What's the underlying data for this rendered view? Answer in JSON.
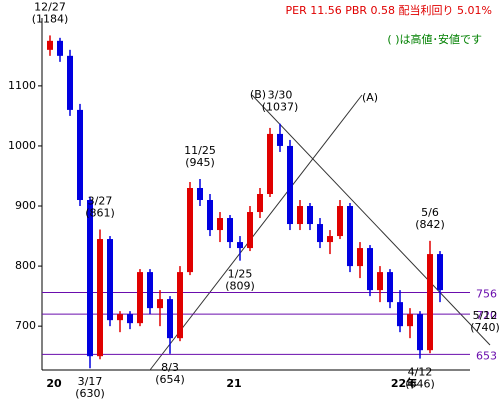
{
  "chart_data": {
    "type": "candlestick",
    "title": "PER 11.56 PBR 0.58 配当利回り 5.01%",
    "note": "( )は高値･安値です",
    "categories": [
      "20",
      null,
      null,
      null,
      null,
      null,
      null,
      null,
      null,
      null,
      null,
      null,
      null,
      null,
      null,
      null,
      null,
      null,
      "21",
      null,
      null,
      null,
      null,
      null,
      null,
      null,
      null,
      null,
      null,
      null,
      null,
      null,
      null,
      null,
      null,
      "22年",
      null,
      null,
      null,
      null
    ],
    "open": [
      1160,
      1175,
      1150,
      1060,
      910,
      650,
      845,
      710,
      720,
      705,
      790,
      730,
      745,
      680,
      790,
      930,
      910,
      860,
      880,
      840,
      830,
      890,
      920,
      1020,
      1000,
      870,
      900,
      870,
      840,
      850,
      900,
      800,
      830,
      760,
      790,
      740,
      700,
      720,
      660,
      820
    ],
    "high": [
      1184,
      1180,
      1160,
      1070,
      915,
      861,
      850,
      725,
      725,
      795,
      795,
      760,
      750,
      800,
      940,
      945,
      920,
      890,
      885,
      850,
      900,
      930,
      1030,
      1037,
      1010,
      910,
      905,
      880,
      860,
      910,
      905,
      840,
      835,
      800,
      795,
      760,
      730,
      725,
      842,
      825
    ],
    "low": [
      1150,
      1140,
      1050,
      900,
      630,
      645,
      700,
      690,
      695,
      700,
      720,
      700,
      654,
      675,
      785,
      900,
      850,
      840,
      830,
      809,
      825,
      880,
      915,
      990,
      860,
      860,
      860,
      830,
      820,
      845,
      790,
      780,
      750,
      740,
      730,
      690,
      680,
      646,
      655,
      740
    ],
    "close": [
      1175,
      1150,
      1060,
      910,
      650,
      845,
      710,
      720,
      705,
      790,
      730,
      745,
      680,
      790,
      930,
      910,
      860,
      880,
      840,
      830,
      890,
      920,
      1020,
      1000,
      870,
      900,
      870,
      840,
      850,
      900,
      800,
      830,
      760,
      790,
      740,
      700,
      720,
      660,
      820,
      760
    ],
    "up_color": "#e00000",
    "down_color": "#0000e0",
    "ylim": [
      627,
      1218
    ],
    "yticks": [
      700,
      800,
      900,
      1000,
      1100
    ],
    "hlines": [
      756,
      720,
      653
    ],
    "hline_color": "#6a0dad",
    "annotations": [
      {
        "label": "12/27",
        "value": 1184,
        "value_label": "(1184)"
      },
      {
        "label": "3/17",
        "value": 630,
        "value_label": "(630)"
      },
      {
        "label": "3/27",
        "value": 861,
        "value_label": "(861)"
      },
      {
        "label": "8/3",
        "value": 654,
        "value_label": "(654)"
      },
      {
        "label": "11/25",
        "value": 945,
        "value_label": "(945)"
      },
      {
        "label": "1/25",
        "value": 809,
        "value_label": "(809)"
      },
      {
        "label": "3/30",
        "value": 1037,
        "value_label": "(1037)"
      },
      {
        "label": "4/12",
        "value": 646,
        "value_label": "(646)"
      },
      {
        "label": "5/6",
        "value": 842,
        "value_label": "(842)"
      },
      {
        "label": "5/12",
        "value": 740,
        "value_label": "(740)"
      }
    ],
    "trend_labels": [
      "(A)",
      "(B)"
    ]
  }
}
